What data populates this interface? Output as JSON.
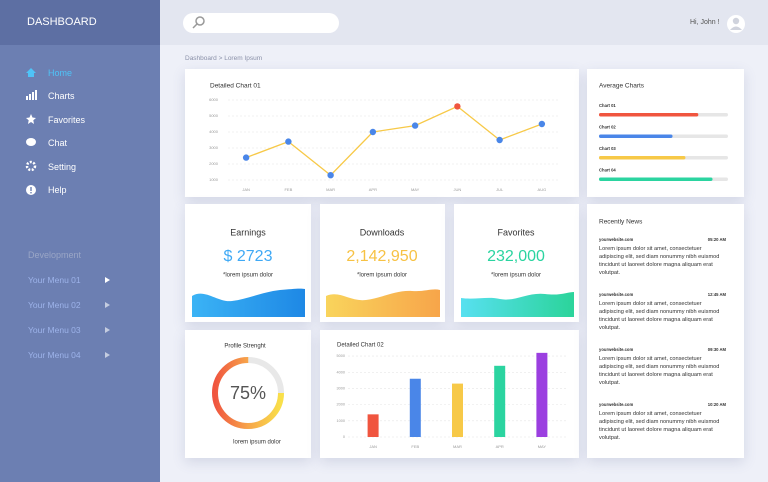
{
  "sidebar": {
    "title": "DASHBOARD",
    "menu": [
      "Home",
      "Charts",
      "Favorites",
      "Chat",
      "Setting",
      "Help"
    ],
    "section": "Development",
    "submenu": [
      "Your Menu 01",
      "Your Menu 02",
      "Your Menu 03",
      "Your Menu 04"
    ]
  },
  "header": {
    "greeting": "Hi, John !"
  },
  "breadcrumb": "Dashboard > Lorem Ipsum",
  "line_chart": {
    "type": "line",
    "title": "Detailed Chart 01",
    "categories": [
      "JAN",
      "FEB",
      "MAR",
      "APR",
      "MAY",
      "JUN",
      "JUL",
      "AUG"
    ],
    "values": [
      2400,
      3400,
      1300,
      4000,
      4400,
      5600,
      3500,
      4500
    ],
    "point_colors": [
      "#4a86e8",
      "#4a86e8",
      "#4a86e8",
      "#4a86e8",
      "#4a86e8",
      "#f0553f",
      "#4a86e8",
      "#4a86e8"
    ],
    "line_color": "#f7c948",
    "ylim": [
      1000,
      6000
    ],
    "yticks": [
      1000,
      2000,
      3000,
      4000,
      5000,
      6000
    ],
    "grid": true
  },
  "average_chart": {
    "type": "progress",
    "title": "Average Charts",
    "categories": [
      "Chart 01",
      "Chart 02",
      "Chart 03",
      "Chart 04"
    ],
    "values": [
      77,
      57,
      67,
      88
    ],
    "colors": [
      "#f0553f",
      "#4a86e8",
      "#f7c948",
      "#2bd4a0"
    ],
    "xlim": [
      0,
      100
    ]
  },
  "stats": [
    {
      "title": "Earnings",
      "value": "$ 2723",
      "note": "*lorem ipsum dolor",
      "color": "#3fa9f5"
    },
    {
      "title": "Downloads",
      "value": "2,142,950",
      "note": "*lorem ipsum dolor",
      "color": "#f7c244"
    },
    {
      "title": "Favorites",
      "value": "232,000",
      "note": "*lorem ipsum dolor",
      "color": "#2bd4a0"
    }
  ],
  "profile": {
    "type": "donut",
    "title": "Profile Strenght",
    "values": [
      75
    ],
    "value_labels": [
      "75%"
    ],
    "xlim": [
      0,
      100
    ],
    "note": "lorem ipsum dolor"
  },
  "bar_chart": {
    "type": "bar",
    "title": "Detailed Chart 02",
    "categories": [
      "JAN",
      "FEB",
      "MAR",
      "APR",
      "MAY"
    ],
    "values": [
      1400,
      3600,
      3300,
      4400,
      5200
    ],
    "colors": [
      "#f0553f",
      "#4a86e8",
      "#f7c948",
      "#2bd4a0",
      "#9b3fe0"
    ],
    "ylim": [
      0,
      5500
    ],
    "yticks": [
      0,
      1000,
      2000,
      3000,
      4000,
      5000
    ],
    "grid": true
  },
  "news": {
    "title": "Recently News",
    "items": [
      {
        "site": "yourwebsite.com",
        "time": "05:20 AM",
        "text": "Lorem ipsum dolor sit amet, consectetuer adipiscing elit, sed diam nonummy nibh euismod tincidunt ut laoreet dolore magna aliquam erat volutpat."
      },
      {
        "site": "yourwebsite.com",
        "time": "12:45 AM",
        "text": "Lorem ipsum dolor sit amet, consectetuer adipiscing elit, sed diam nonummy nibh euismod tincidunt ut laoreet dolore magna aliquam erat volutpat."
      },
      {
        "site": "yourwebsite.com",
        "time": "09:30 AM",
        "text": "Lorem ipsum dolor sit amet, consectetuer adipiscing elit, sed diam nonummy nibh euismod tincidunt ut laoreet dolore magna aliquam erat volutpat."
      },
      {
        "site": "yourwebsite.com",
        "time": "10:20 AM",
        "text": "Lorem ipsum dolor sit amet, consectetuer adipiscing elit, sed diam nonummy nibh euismod tincidunt ut laoreet dolore magna aliquam erat volutpat."
      }
    ]
  }
}
